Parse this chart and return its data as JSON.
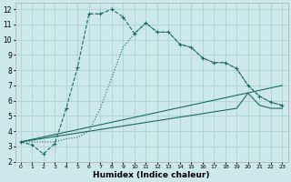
{
  "xlabel": "Humidex (Indice chaleur)",
  "background_color": "#cce8e8",
  "line_color": "#1a6b5e",
  "grid_color": "#aed4d0",
  "xlim": [
    -0.5,
    23.5
  ],
  "ylim": [
    2,
    12.4
  ],
  "xticks": [
    0,
    1,
    2,
    3,
    4,
    5,
    6,
    7,
    8,
    9,
    10,
    11,
    12,
    13,
    14,
    15,
    16,
    17,
    18,
    19,
    20,
    21,
    22,
    23
  ],
  "yticks": [
    2,
    3,
    4,
    5,
    6,
    7,
    8,
    9,
    10,
    11,
    12
  ],
  "series": [
    {
      "x": [
        0,
        1,
        2,
        3,
        4,
        5,
        6,
        7,
        8,
        9,
        10,
        11,
        12,
        13,
        14,
        15,
        16,
        17,
        18,
        19,
        20,
        21,
        22,
        23
      ],
      "y": [
        3.3,
        3.1,
        2.5,
        3.2,
        5.5,
        8.2,
        11.7,
        11.7,
        12.0,
        11.5,
        10.4,
        11.1,
        10.5,
        10.5,
        9.7,
        9.5,
        8.8,
        8.5,
        8.5,
        8.1,
        7.0,
        6.3,
        5.9,
        5.7
      ],
      "style": "--",
      "marker": "+",
      "markersize": 3.5
    },
    {
      "x": [
        0,
        1,
        2,
        3,
        4,
        5,
        6,
        7,
        8,
        9,
        10,
        11,
        12,
        13,
        14,
        15,
        16,
        17,
        18,
        19,
        20,
        21,
        22,
        23
      ],
      "y": [
        3.3,
        3.3,
        3.3,
        3.3,
        3.5,
        3.6,
        4.0,
        5.5,
        7.5,
        9.5,
        10.4,
        11.1,
        10.5,
        10.5,
        9.7,
        9.5,
        8.8,
        8.5,
        8.5,
        8.1,
        7.0,
        6.3,
        5.9,
        5.7
      ],
      "style": ":",
      "marker": null,
      "markersize": 0
    },
    {
      "x": [
        0,
        23
      ],
      "y": [
        3.3,
        7.0
      ],
      "style": "-",
      "marker": null,
      "markersize": 0
    },
    {
      "x": [
        0,
        19,
        20,
        21,
        22,
        23
      ],
      "y": [
        3.3,
        5.5,
        6.5,
        5.7,
        5.5,
        5.5
      ],
      "style": "-",
      "marker": null,
      "markersize": 0
    }
  ]
}
